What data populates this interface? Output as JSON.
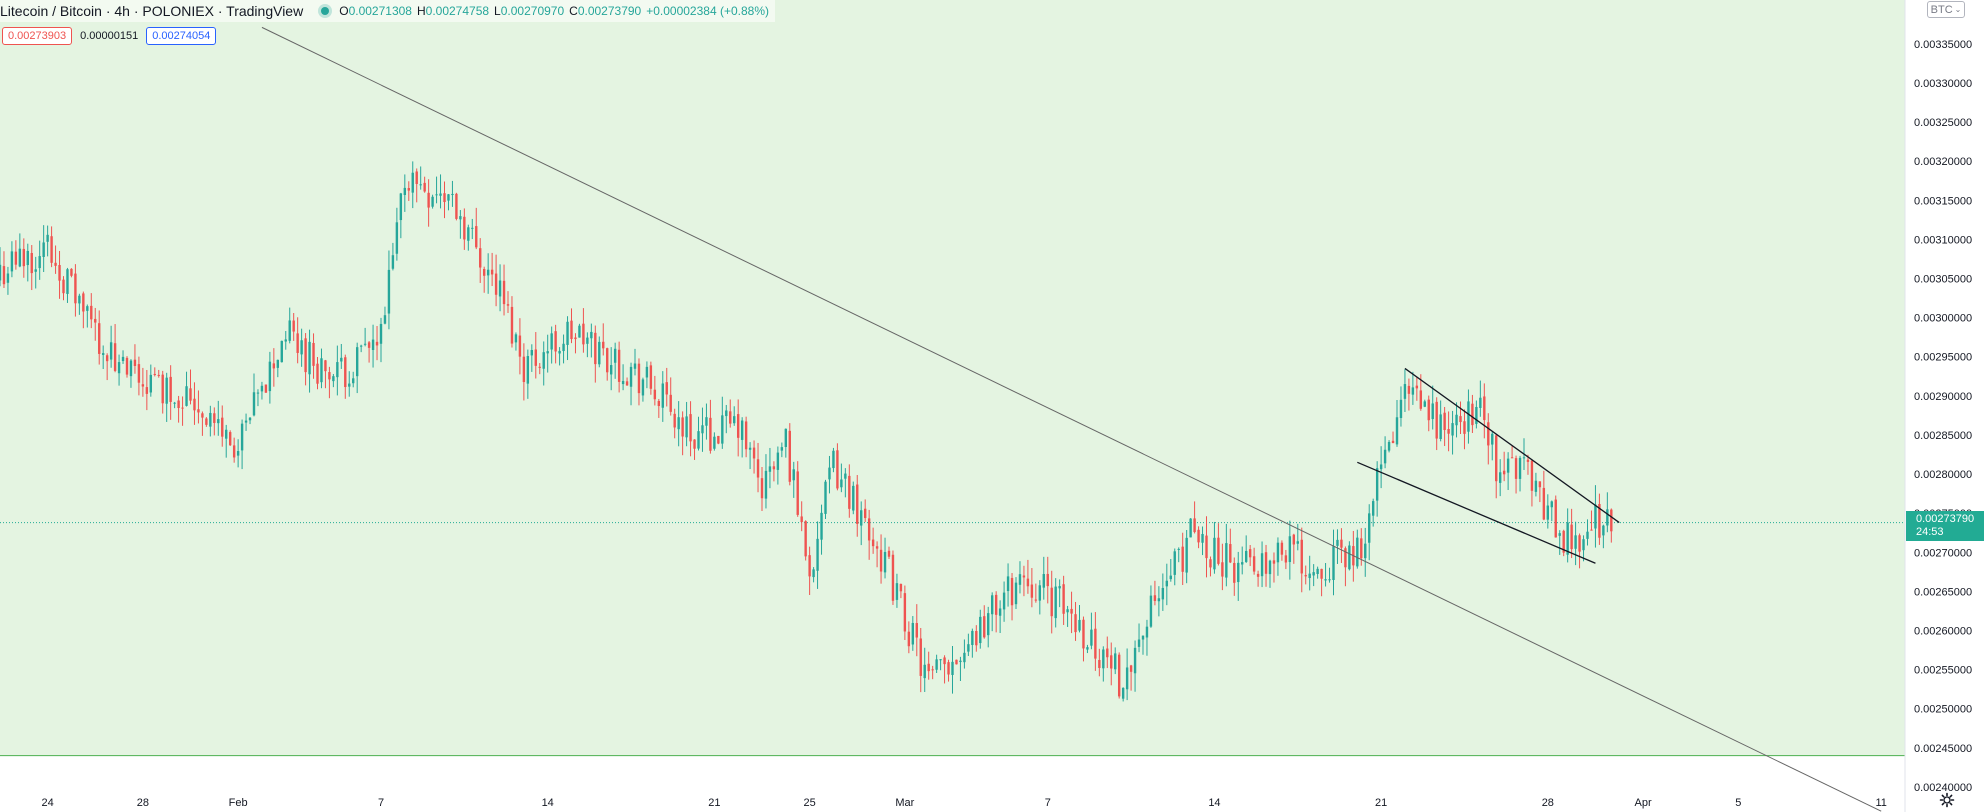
{
  "header": {
    "symbol": "Litecoin / Bitcoin · 4h · POLONIEX · TradingView",
    "open_label": "O",
    "open": "0.00271308",
    "high_label": "H",
    "high": "0.00274758",
    "low_label": "L",
    "low": "0.00270970",
    "close_label": "C",
    "close": "0.00273790",
    "change": "+0.00002384 (+0.88%)"
  },
  "quote": {
    "sell": "0.00273903",
    "spread": "0.00000151",
    "buy": "0.00274054"
  },
  "current_price": {
    "value": "0.00273790",
    "countdown": "24:53"
  },
  "currency_button": "BTC",
  "colors": {
    "up": "#26a69a",
    "down": "#ef5350",
    "zone_fill": "#e4f4e1",
    "zone_line": "#4caf50",
    "price_line": "#22ab94",
    "trendline": "#666666"
  },
  "chart_data": {
    "type": "candlestick",
    "title": "",
    "interval": "4h",
    "x_ticks": [
      "24",
      "28",
      "Feb",
      "7",
      "14",
      "21",
      "25",
      "Mar",
      "7",
      "14",
      "21",
      "28",
      "Apr",
      "5",
      "11"
    ],
    "x_range": [
      "2021-01-22",
      "2021-04-12"
    ],
    "y_ticks": [
      "0.00240000",
      "0.00245000",
      "0.00250000",
      "0.00255000",
      "0.00260000",
      "0.00265000",
      "0.00270000",
      "0.00275000",
      "0.00280000",
      "0.00285000",
      "0.00290000",
      "0.00295000",
      "0.00300000",
      "0.00305000",
      "0.00310000",
      "0.00315000",
      "0.00320000",
      "0.00325000",
      "0.00330000",
      "0.00335000"
    ],
    "ylim": [
      0.002368,
      0.003406
    ],
    "support_zone": {
      "lower": 0.002368,
      "upper": 0.00244
    },
    "current_price": 0.0027379,
    "price_path": [
      [
        "2021-01-22",
        0.00306
      ],
      [
        "2021-01-24",
        0.00309
      ],
      [
        "2021-01-27",
        0.00293
      ],
      [
        "2021-01-30",
        0.0029
      ],
      [
        "2021-02-01",
        0.00283
      ],
      [
        "2021-02-03",
        0.00298
      ],
      [
        "2021-02-05",
        0.00292
      ],
      [
        "2021-02-07",
        0.00297
      ],
      [
        "2021-02-08",
        0.00318
      ],
      [
        "2021-02-10",
        0.00315
      ],
      [
        "2021-02-12",
        0.00303
      ],
      [
        "2021-02-13",
        0.00294
      ],
      [
        "2021-02-15",
        0.00298
      ],
      [
        "2021-02-18",
        0.00292
      ],
      [
        "2021-02-20",
        0.00285
      ],
      [
        "2021-02-22",
        0.00286
      ],
      [
        "2021-02-23",
        0.00278
      ],
      [
        "2021-02-24",
        0.00284
      ],
      [
        "2021-02-25",
        0.00268
      ],
      [
        "2021-02-26",
        0.00281
      ],
      [
        "2021-02-27",
        0.00276
      ],
      [
        "2021-02-28",
        0.0027
      ],
      [
        "2021-03-02",
        0.00253
      ],
      [
        "2021-03-04",
        0.0026
      ],
      [
        "2021-03-06",
        0.00267
      ],
      [
        "2021-03-08",
        0.00262
      ],
      [
        "2021-03-10",
        0.00254
      ],
      [
        "2021-03-12",
        0.00266
      ],
      [
        "2021-03-13",
        0.00272
      ],
      [
        "2021-03-15",
        0.00268
      ],
      [
        "2021-03-17",
        0.00271
      ],
      [
        "2021-03-18",
        0.00268
      ],
      [
        "2021-03-20",
        0.0027
      ],
      [
        "2021-03-21",
        0.0028
      ],
      [
        "2021-03-22",
        0.0029
      ],
      [
        "2021-03-24",
        0.00285
      ],
      [
        "2021-03-25",
        0.00289
      ],
      [
        "2021-03-26",
        0.0028
      ],
      [
        "2021-03-27",
        0.00282
      ],
      [
        "2021-03-28",
        0.00275
      ],
      [
        "2021-03-29",
        0.00271
      ],
      [
        "2021-03-30",
        0.00274
      ]
    ],
    "trendlines": [
      {
        "name": "long-downtrend",
        "p1": [
          "2021-02-02",
          0.003371
        ],
        "p2": [
          "2021-04-11",
          0.002369
        ]
      },
      {
        "name": "wedge-upper",
        "p1": [
          "2021-03-22",
          0.002935
        ],
        "p2": [
          "2021-03-31",
          0.002738
        ]
      },
      {
        "name": "wedge-lower",
        "p1": [
          "2021-03-20",
          0.002815
        ],
        "p2": [
          "2021-03-30",
          0.002686
        ]
      }
    ]
  }
}
